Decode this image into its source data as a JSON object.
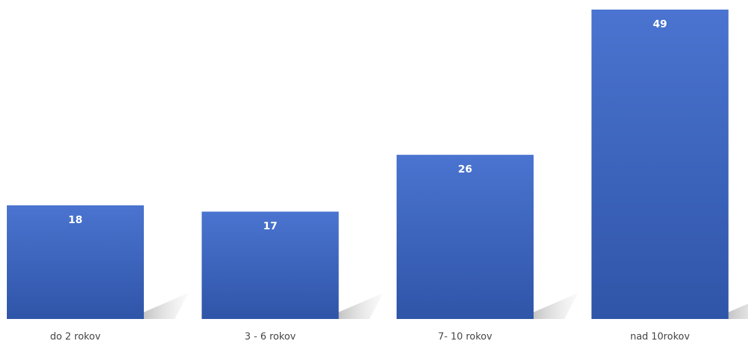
{
  "chart_data": {
    "type": "bar",
    "categories": [
      "do 2 rokov",
      "3 - 6 rokov",
      "7- 10 rokov",
      "nad 10rokov"
    ],
    "values": [
      18,
      17,
      26,
      49
    ],
    "title": "",
    "xlabel": "",
    "ylabel": "",
    "ylim": [
      0,
      50
    ],
    "grid": false,
    "legend": "none",
    "data_labels": "inside-top",
    "colors": {
      "bar_top": "#4a74d0",
      "bar_bottom": "#2f55a8",
      "shadow": "#c8c8c8",
      "label": "#ffffff",
      "category_text": "#444444"
    }
  }
}
